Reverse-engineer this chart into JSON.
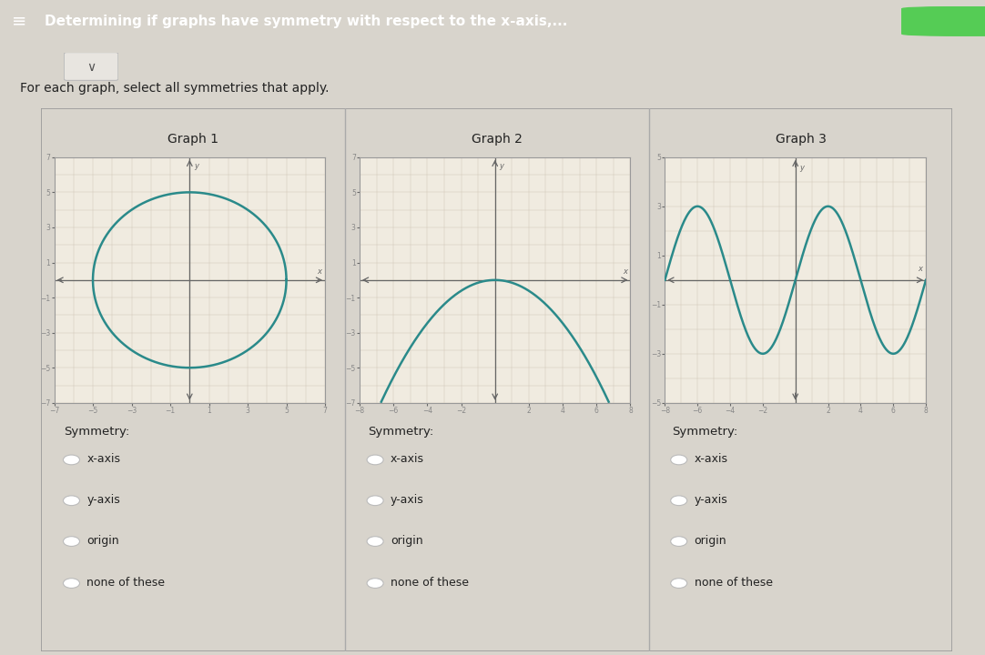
{
  "title": "Determining if graphs have symmetry with respect to the x-axis,...",
  "subtitle": "For each graph, select all symmetries that apply.",
  "graph_titles": [
    "Graph 1",
    "Graph 2",
    "Graph 3"
  ],
  "symmetry_options": [
    "x-axis",
    "y-axis",
    "origin",
    "none of these"
  ],
  "teal_color": "#2a8a8a",
  "bg_color": "#f0ebe0",
  "grid_color": "#d0c8b8",
  "outer_bg": "#d8d4cc",
  "header_bg": "#3ab5c6",
  "header_text": "#ffffff",
  "panel_bg": "#f5f2ed",
  "axis_color": "#666666",
  "text_color": "#222222",
  "checkbox_color": "#bbbbbb",
  "divider_color": "#aaaaaa",
  "graph_border_color": "#999999"
}
